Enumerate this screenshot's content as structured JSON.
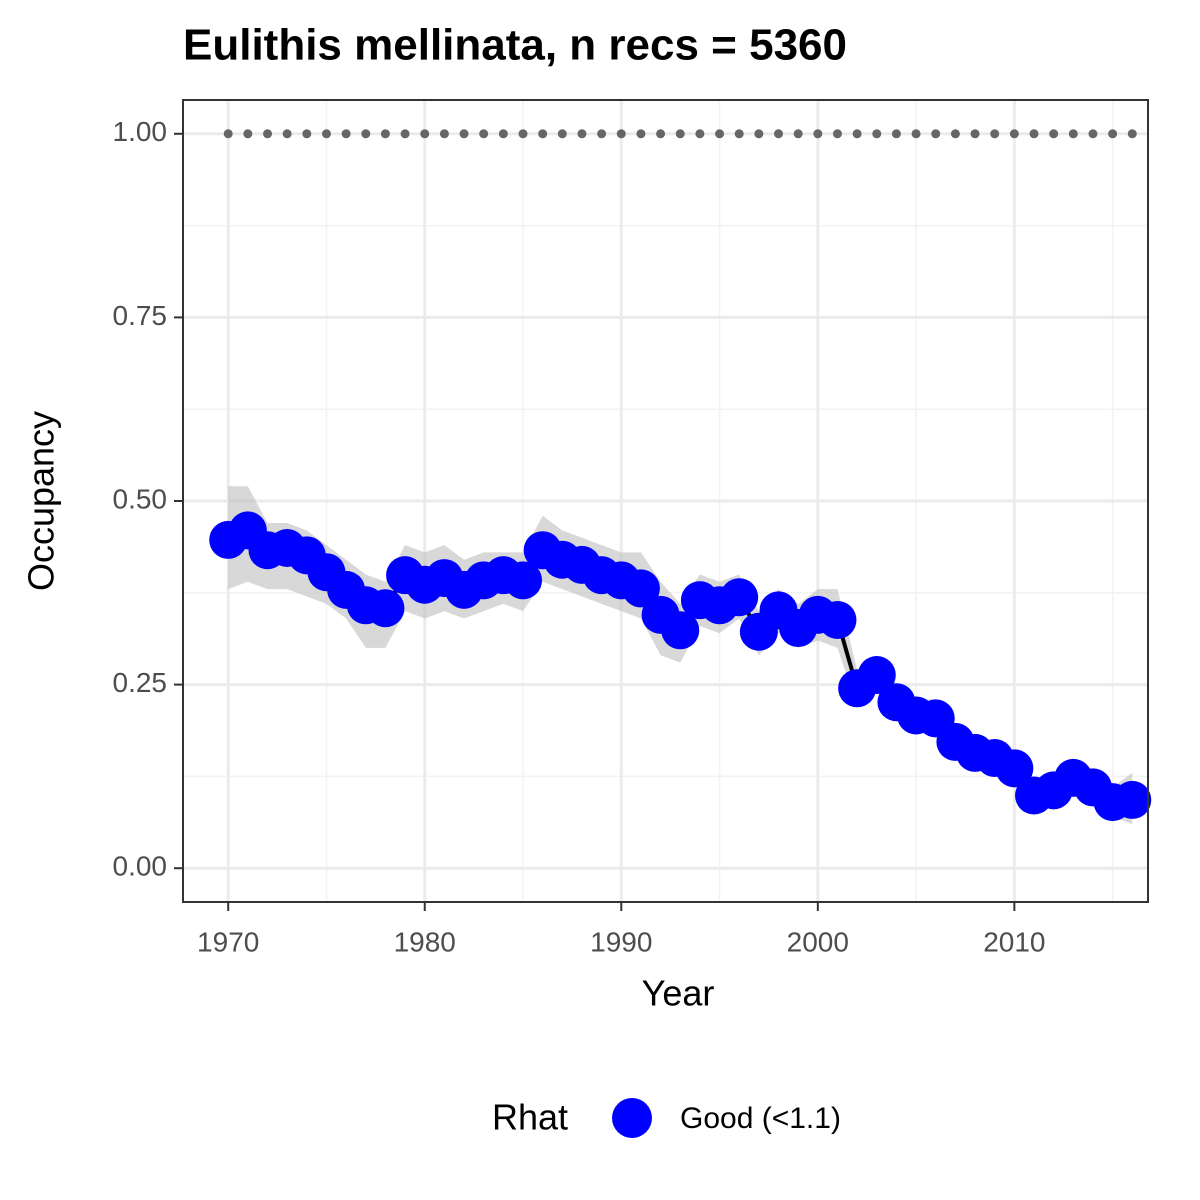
{
  "chart_data": {
    "type": "line",
    "title": "Eulithis mellinata, n recs = 5360",
    "x_label": "Year",
    "y_label": "Occupancy",
    "x": [
      1970,
      1971,
      1972,
      1973,
      1974,
      1975,
      1976,
      1977,
      1978,
      1979,
      1980,
      1981,
      1982,
      1983,
      1984,
      1985,
      1986,
      1987,
      1988,
      1989,
      1990,
      1991,
      1992,
      1993,
      1994,
      1995,
      1996,
      1997,
      1998,
      1999,
      2000,
      2001,
      2002,
      2003,
      2004,
      2005,
      2006,
      2007,
      2008,
      2009,
      2010,
      2011,
      2012,
      2013,
      2014,
      2015,
      2016
    ],
    "series": [
      {
        "name": "Good (<1.1)",
        "color": "#0000ff",
        "line_color": "#000000",
        "ribbon_color": "#bebebe",
        "values": [
          0.447,
          0.46,
          0.433,
          0.436,
          0.426,
          0.403,
          0.379,
          0.358,
          0.354,
          0.399,
          0.386,
          0.395,
          0.379,
          0.392,
          0.399,
          0.392,
          0.433,
          0.42,
          0.413,
          0.399,
          0.392,
          0.381,
          0.345,
          0.324,
          0.365,
          0.358,
          0.369,
          0.322,
          0.351,
          0.327,
          0.345,
          0.338,
          0.245,
          0.263,
          0.226,
          0.208,
          0.204,
          0.172,
          0.157,
          0.15,
          0.136,
          0.099,
          0.106,
          0.123,
          0.11,
          0.09,
          0.093
        ],
        "ci_upper": [
          0.52,
          0.52,
          0.47,
          0.47,
          0.46,
          0.44,
          0.42,
          0.4,
          0.39,
          0.44,
          0.43,
          0.44,
          0.42,
          0.43,
          0.43,
          0.43,
          0.48,
          0.46,
          0.45,
          0.44,
          0.43,
          0.43,
          0.39,
          0.36,
          0.4,
          0.39,
          0.4,
          0.35,
          0.38,
          0.36,
          0.38,
          0.38,
          0.27,
          0.29,
          0.25,
          0.23,
          0.23,
          0.19,
          0.18,
          0.17,
          0.16,
          0.12,
          0.12,
          0.14,
          0.13,
          0.11,
          0.13
        ],
        "ci_lower": [
          0.38,
          0.39,
          0.38,
          0.38,
          0.37,
          0.36,
          0.34,
          0.3,
          0.3,
          0.35,
          0.34,
          0.35,
          0.34,
          0.35,
          0.36,
          0.35,
          0.39,
          0.38,
          0.37,
          0.36,
          0.35,
          0.34,
          0.29,
          0.28,
          0.33,
          0.32,
          0.34,
          0.29,
          0.32,
          0.3,
          0.31,
          0.3,
          0.22,
          0.24,
          0.2,
          0.19,
          0.18,
          0.15,
          0.14,
          0.13,
          0.12,
          0.08,
          0.09,
          0.11,
          0.09,
          0.07,
          0.06
        ]
      }
    ],
    "reference_line": 1,
    "reference_color": "#666666",
    "legend_title": "Rhat",
    "legend_position": "bottom",
    "xlim": [
      1967.7,
      2016.8
    ],
    "ylim": [
      -0.046,
      1.046
    ],
    "xticks": [
      1970,
      1980,
      1990,
      2000,
      2010
    ],
    "yticks": [
      {
        "value": 0,
        "label": "0.00"
      },
      {
        "value": 0.25,
        "label": "0.25"
      },
      {
        "value": 0.5,
        "label": "0.50"
      },
      {
        "value": 0.75,
        "label": "0.75"
      },
      {
        "value": 1,
        "label": "1.00"
      }
    ],
    "grid": true
  }
}
